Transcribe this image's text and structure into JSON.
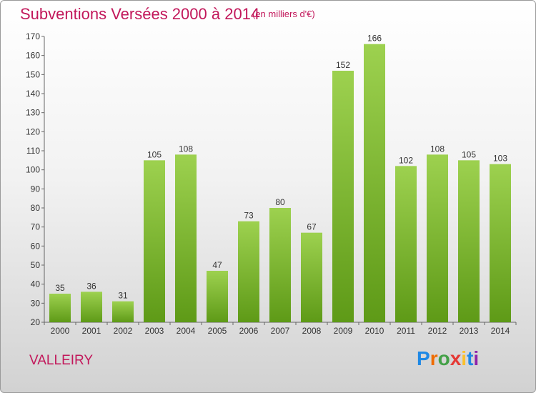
{
  "header": {
    "title": "Subventions Versées 2000 à 2014",
    "subtitle": "(en milliers d'€)"
  },
  "footer": {
    "commune": "VALLEIRY",
    "logo_letters": [
      "P",
      "r",
      "o",
      "x",
      "i",
      "t",
      "i"
    ]
  },
  "colors": {
    "accent": "#c2185b",
    "bar_top": "#9dd14f",
    "bar_bottom": "#5e9a17"
  },
  "chart_data": {
    "type": "bar",
    "categories": [
      "2000",
      "2001",
      "2002",
      "2003",
      "2004",
      "2005",
      "2006",
      "2007",
      "2008",
      "2009",
      "2010",
      "2011",
      "2012",
      "2013",
      "2014"
    ],
    "values": [
      35,
      36,
      31,
      105,
      108,
      47,
      73,
      80,
      67,
      152,
      166,
      102,
      108,
      105,
      103
    ],
    "title": "Subventions Versées 2000 à 2014",
    "subtitle": "(en milliers d'€)",
    "ylim": [
      20,
      170
    ],
    "yticks": [
      20,
      30,
      40,
      50,
      60,
      70,
      80,
      90,
      100,
      110,
      120,
      130,
      140,
      150,
      160,
      170
    ],
    "grid": false
  }
}
